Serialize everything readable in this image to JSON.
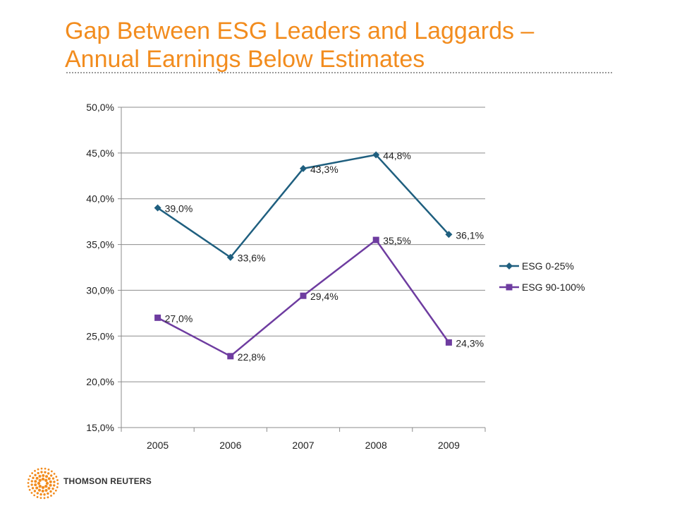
{
  "page": {
    "title_line1": "Gap Between ESG Leaders and Laggards –",
    "title_line2": "Annual Earnings Below Estimates",
    "footer_brand": "THOMSON REUTERS"
  },
  "colors": {
    "title": "#F28C1E",
    "series_1": "#1F5F7F",
    "series_2": "#6E3CA0",
    "logo": "#F28C1E"
  },
  "chart_data": {
    "type": "line",
    "title": "",
    "xlabel": "",
    "ylabel": "",
    "categories": [
      "2005",
      "2006",
      "2007",
      "2008",
      "2009"
    ],
    "ylim": [
      15.0,
      50.0
    ],
    "y_ticks": [
      15.0,
      20.0,
      25.0,
      30.0,
      35.0,
      40.0,
      45.0,
      50.0
    ],
    "y_tick_labels": [
      "15,0%",
      "20,0%",
      "25,0%",
      "30,0%",
      "35,0%",
      "40,0%",
      "45,0%",
      "50,0%"
    ],
    "grid": "horizontal",
    "legend_position": "right",
    "series": [
      {
        "name": "ESG 0-25%",
        "marker": "diamond",
        "values": [
          39.0,
          33.6,
          43.3,
          44.8,
          36.1
        ],
        "labels": [
          "39,0%",
          "33,6%",
          "43,3%",
          "44,8%",
          "36,1%"
        ]
      },
      {
        "name": "ESG 90-100%",
        "marker": "square",
        "values": [
          27.0,
          22.8,
          29.4,
          35.5,
          24.3
        ],
        "labels": [
          "27,0%",
          "22,8%",
          "29,4%",
          "35,5%",
          "24,3%"
        ]
      }
    ]
  }
}
